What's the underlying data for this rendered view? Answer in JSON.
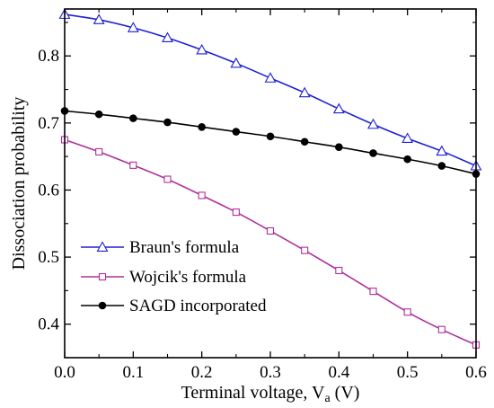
{
  "chart_data": {
    "type": "line",
    "xlabel": "Terminal voltage, V",
    "xlabel_subscript": "a",
    "xlabel_suffix": " (V)",
    "ylabel": "Dissociation probability",
    "xlim": [
      0.0,
      0.6
    ],
    "ylim": [
      0.35,
      0.87
    ],
    "x_ticks": [
      "0.0",
      "0.1",
      "0.2",
      "0.3",
      "0.4",
      "0.5",
      "0.6"
    ],
    "y_ticks": [
      "0.4",
      "0.5",
      "0.6",
      "0.7",
      "0.8"
    ],
    "grid": false,
    "legend_position": "lower-left",
    "series": [
      {
        "name": "Braun's formula",
        "color": "#1f1fd6",
        "marker": "triangle-open",
        "x": [
          0.0,
          0.05,
          0.1,
          0.15,
          0.2,
          0.25,
          0.3,
          0.35,
          0.4,
          0.45,
          0.5,
          0.55,
          0.6
        ],
        "y": [
          0.862,
          0.854,
          0.842,
          0.827,
          0.809,
          0.789,
          0.767,
          0.745,
          0.721,
          0.698,
          0.677,
          0.658,
          0.636
        ]
      },
      {
        "name": "Wojcik's formula",
        "color": "#b0309a",
        "marker": "square-open",
        "x": [
          0.0,
          0.05,
          0.1,
          0.15,
          0.2,
          0.25,
          0.3,
          0.35,
          0.4,
          0.45,
          0.5,
          0.55,
          0.6
        ],
        "y": [
          0.675,
          0.657,
          0.637,
          0.616,
          0.592,
          0.567,
          0.539,
          0.51,
          0.48,
          0.449,
          0.418,
          0.392,
          0.369
        ]
      },
      {
        "name": "SAGD incorporated",
        "color": "#000000",
        "marker": "circle-filled",
        "x": [
          0.0,
          0.05,
          0.1,
          0.15,
          0.2,
          0.25,
          0.3,
          0.35,
          0.4,
          0.45,
          0.5,
          0.55,
          0.6
        ],
        "y": [
          0.718,
          0.713,
          0.707,
          0.701,
          0.694,
          0.687,
          0.68,
          0.672,
          0.664,
          0.655,
          0.646,
          0.636,
          0.624
        ]
      }
    ]
  }
}
